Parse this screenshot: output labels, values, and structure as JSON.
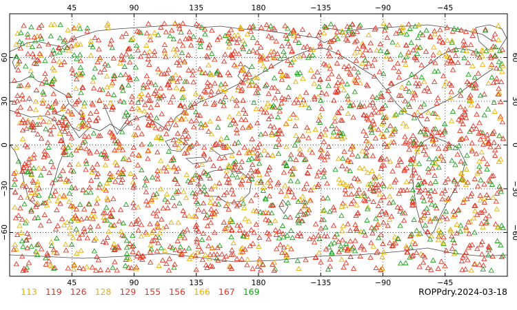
{
  "title": "ROPPdry.2024-03-18",
  "map": {
    "projection": "equirectangular",
    "lon_range": [
      0,
      360
    ],
    "lat_range": [
      -90,
      90
    ],
    "central_lon": 180,
    "grid_lines": "dotted",
    "x_ticks": [
      {
        "lon": 45,
        "label": "45"
      },
      {
        "lon": 90,
        "label": "90"
      },
      {
        "lon": 135,
        "label": "135"
      },
      {
        "lon": 180,
        "label": "180"
      },
      {
        "lon": 225,
        "label": "−135"
      },
      {
        "lon": 270,
        "label": "−90"
      },
      {
        "lon": 315,
        "label": "−45"
      }
    ],
    "y_ticks": [
      {
        "lat": 60,
        "label": "60"
      },
      {
        "lat": 30,
        "label": "30"
      },
      {
        "lat": 0,
        "label": "0"
      },
      {
        "lat": -30,
        "label": "−30"
      },
      {
        "lat": -60,
        "label": "−60"
      }
    ]
  },
  "legend": {
    "entries": [
      {
        "label": "113",
        "color": "#e8b000"
      },
      {
        "label": "119",
        "color": "#e83020"
      },
      {
        "label": "126",
        "color": "#e83020"
      },
      {
        "label": "128",
        "color": "#e8b000"
      },
      {
        "label": "129",
        "color": "#e83020"
      },
      {
        "label": "155",
        "color": "#e83020"
      },
      {
        "label": "156",
        "color": "#e83020"
      },
      {
        "label": "166",
        "color": "#e8b000"
      },
      {
        "label": "167",
        "color": "#e83020"
      },
      {
        "label": "169",
        "color": "#18a018"
      }
    ]
  },
  "marker_colors": {
    "red": "#e83020",
    "orange": "#e8b000",
    "green": "#18a018"
  },
  "marker_shape": "triangle"
}
